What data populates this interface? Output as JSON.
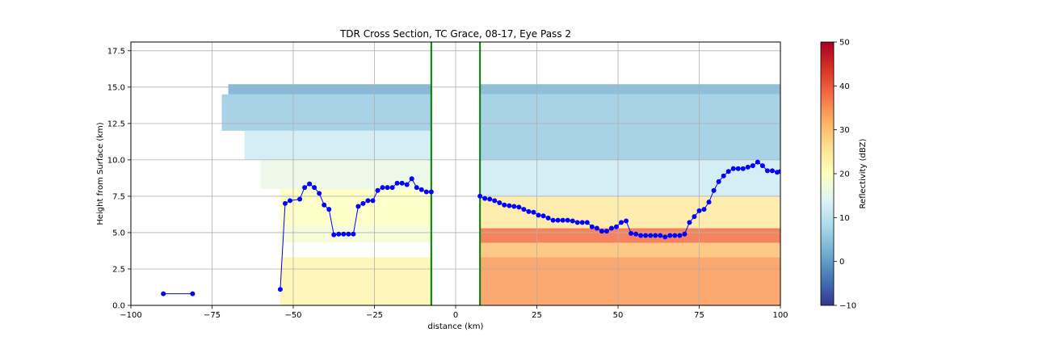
{
  "chart_data": {
    "type": "heatmap",
    "title": "TDR Cross Section, TC Grace, 08-17, Eye Pass 2",
    "xlabel": "distance (km)",
    "ylabel": "Height from Surface (km)",
    "xlim": [
      -100,
      100
    ],
    "ylim": [
      0,
      18.1
    ],
    "xticks": [
      -100,
      -75,
      -50,
      -25,
      0,
      25,
      50,
      75,
      100
    ],
    "xtick_labels": [
      "−100",
      "−75",
      "−50",
      "−25",
      "0",
      "25",
      "50",
      "75",
      "100"
    ],
    "yticks": [
      0,
      2.5,
      5,
      7.5,
      10,
      12.5,
      15,
      17.5
    ],
    "ytick_labels": [
      "0.0",
      "2.5",
      "5.0",
      "7.5",
      "10.0",
      "12.5",
      "15.0",
      "17.5"
    ],
    "grid": true,
    "colorbar": {
      "label": "Reflectivity (dBZ)",
      "range": [
        -10,
        50
      ],
      "ticks": [
        -10,
        0,
        10,
        20,
        30,
        40,
        50
      ],
      "tick_labels": [
        "−10",
        "0",
        "10",
        "20",
        "30",
        "40",
        "50"
      ],
      "colormap": "RdYlBu_r"
    },
    "vertical_lines": [
      {
        "x": -7.5,
        "color": "#008000"
      },
      {
        "x": 7.5,
        "color": "#008000"
      }
    ],
    "series": [
      {
        "color": "#0000ff",
        "marker": "circle",
        "segments": [
          {
            "x": [
              -90,
              -81
            ],
            "y": [
              0.8,
              0.8
            ]
          },
          {
            "x": [
              -54,
              -52.5,
              -51,
              -48,
              -46.5,
              -45,
              -43.5,
              -42,
              -40.5,
              -39,
              -37.5,
              -36,
              -34.5,
              -33,
              -31.5,
              -30,
              -28.5,
              -27,
              -25.5,
              -24,
              -22.5,
              -21,
              -19.5,
              -18,
              -16.5,
              -15,
              -13.5,
              -12,
              -10.5,
              -9,
              -7.5
            ],
            "y": [
              1.1,
              7.0,
              7.2,
              7.3,
              8.1,
              8.35,
              8.1,
              7.7,
              6.9,
              6.6,
              4.85,
              4.9,
              4.9,
              4.9,
              4.9,
              6.8,
              7.0,
              7.2,
              7.2,
              7.9,
              8.1,
              8.1,
              8.1,
              8.4,
              8.4,
              8.3,
              8.7,
              8.1,
              7.95,
              7.8,
              7.8
            ]
          },
          {
            "x": [
              7.5,
              9,
              10.5,
              12,
              13.5,
              15,
              16.5,
              18,
              19.5,
              21,
              22.5,
              24,
              25.5,
              27,
              28.5,
              30,
              31.5,
              33,
              34.5,
              36,
              37.5,
              39,
              40.5,
              42,
              43.5,
              45,
              46.5,
              48,
              49.5,
              51,
              52.5,
              54,
              55.5,
              57,
              58.5,
              60,
              61.5,
              63,
              64.5,
              66,
              67.5,
              69,
              70.5,
              72,
              73.5,
              75,
              76.5,
              78,
              79.5,
              81,
              82.5,
              84,
              85.5,
              87,
              88.5,
              90,
              91.5,
              93,
              94.5,
              96,
              97.5,
              99,
              100
            ],
            "y": [
              7.5,
              7.35,
              7.3,
              7.2,
              7.05,
              6.9,
              6.85,
              6.8,
              6.75,
              6.6,
              6.45,
              6.4,
              6.2,
              6.15,
              6.0,
              5.85,
              5.85,
              5.85,
              5.85,
              5.8,
              5.7,
              5.7,
              5.7,
              5.4,
              5.3,
              5.1,
              5.1,
              5.3,
              5.4,
              5.7,
              5.8,
              4.95,
              4.9,
              4.8,
              4.8,
              4.8,
              4.8,
              4.8,
              4.7,
              4.8,
              4.8,
              4.8,
              4.9,
              5.7,
              6.1,
              6.5,
              6.6,
              7.1,
              7.9,
              8.5,
              8.9,
              9.2,
              9.4,
              9.4,
              9.4,
              9.5,
              9.6,
              9.85,
              9.6,
              9.25,
              9.25,
              9.15,
              9.2
            ]
          }
        ]
      }
    ],
    "reflectivity_grid": {
      "units": "dBZ",
      "x_cells": [
        -72.5,
        -67.5,
        -62.5,
        -57.5,
        -52.5,
        -47.5,
        -42.5,
        -37.5,
        -32.5,
        -27.5,
        -22.5,
        -17.5,
        -12.5,
        -7.5,
        -2.5,
        2.5,
        7.5,
        12.5,
        17.5,
        22.5,
        27.5,
        32.5,
        37.5,
        42.5,
        47.5,
        52.5,
        57.5,
        62.5,
        67.5,
        72.5,
        77.5,
        82.5,
        87.5,
        92.5,
        97.5
      ],
      "rows": [
        {
          "y0": 14.5,
          "y1": 15.2,
          "x0": -70,
          "x1": -7.5,
          "value": 2
        },
        {
          "y0": 12.0,
          "y1": 14.5,
          "x0": -72,
          "x1": -7.5,
          "value": 6
        },
        {
          "y0": 10.0,
          "y1": 12.0,
          "x0": -65,
          "x1": -7.5,
          "value": 12
        },
        {
          "y0": 8.0,
          "y1": 10.0,
          "x0": -60,
          "x1": -7.5,
          "value": 16
        },
        {
          "y0": 5.5,
          "y1": 8.0,
          "x0": -54,
          "x1": -7.5,
          "value": 20
        },
        {
          "y0": 4.3,
          "y1": 5.5,
          "x0": -54,
          "x1": -7.5,
          "value": 18
        },
        {
          "y0": 0.0,
          "y1": 3.3,
          "x0": -54,
          "x1": -7.5,
          "value": 22
        },
        {
          "y0": 14.5,
          "y1": 15.2,
          "x0": 7.5,
          "x1": 100,
          "value": 3
        },
        {
          "y0": 10.0,
          "y1": 14.5,
          "x0": 7.5,
          "x1": 100,
          "value": 6
        },
        {
          "y0": 7.5,
          "y1": 10.0,
          "x0": 7.5,
          "x1": 100,
          "value": 12
        },
        {
          "y0": 5.3,
          "y1": 7.5,
          "x0": 7.5,
          "x1": 100,
          "value": 24
        },
        {
          "y0": 4.3,
          "y1": 5.3,
          "x0": 7.5,
          "x1": 100,
          "value": 38
        },
        {
          "y0": 3.3,
          "y1": 4.3,
          "x0": 7.5,
          "x1": 100,
          "value": 30
        },
        {
          "y0": 0.0,
          "y1": 3.3,
          "x0": 7.5,
          "x1": 100,
          "value": 34
        }
      ]
    }
  }
}
